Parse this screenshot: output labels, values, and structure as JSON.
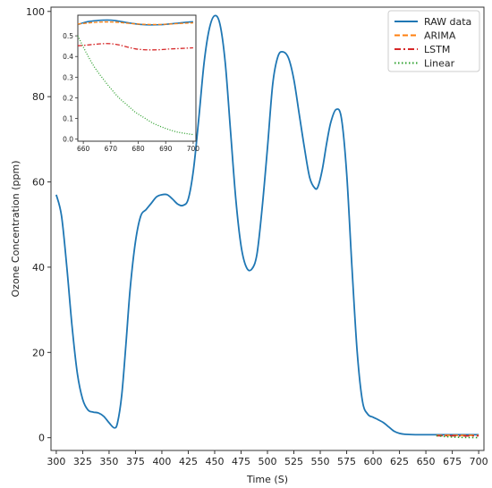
{
  "chart_data": [
    {
      "type": "line",
      "title": "",
      "xlabel": "Time (S)",
      "ylabel": "Ozone Concentration (ppm)",
      "xlim": [
        295,
        705
      ],
      "ylim": [
        -3,
        101
      ],
      "xticks": [
        300,
        325,
        350,
        375,
        400,
        425,
        450,
        475,
        500,
        525,
        550,
        575,
        600,
        625,
        650,
        675,
        700
      ],
      "yticks": [
        0,
        20,
        40,
        60,
        80,
        100
      ],
      "grid": false,
      "legend_position": "top-right",
      "series": [
        {
          "name": "RAW data",
          "color": "#1f77b4",
          "style": "solid",
          "x": [
            300,
            305,
            310,
            315,
            320,
            325,
            330,
            335,
            340,
            345,
            350,
            355,
            358,
            362,
            366,
            370,
            375,
            380,
            385,
            390,
            395,
            400,
            405,
            410,
            415,
            420,
            425,
            430,
            435,
            440,
            445,
            450,
            455,
            460,
            465,
            470,
            475,
            480,
            485,
            490,
            495,
            500,
            505,
            510,
            515,
            520,
            525,
            530,
            535,
            540,
            545,
            548,
            552,
            556,
            560,
            565,
            570,
            575,
            580,
            585,
            590,
            595,
            600,
            605,
            610,
            615,
            620,
            625,
            630,
            640,
            650,
            660,
            670,
            680,
            690,
            700
          ],
          "y": [
            57,
            52,
            40,
            26,
            15,
            9,
            6.5,
            6,
            5.8,
            5,
            3.5,
            2.3,
            3.5,
            10,
            22,
            35,
            46,
            52,
            53.5,
            55,
            56.5,
            57,
            57,
            56,
            54.8,
            54.5,
            56,
            63,
            75,
            88,
            96,
            99,
            97,
            88,
            72,
            56,
            45,
            40,
            39.5,
            43,
            54,
            68,
            83,
            89.5,
            90.5,
            89,
            84,
            76,
            68,
            61,
            58.5,
            59,
            63,
            69,
            74,
            77,
            75,
            62,
            40,
            20,
            8.5,
            5.5,
            4.8,
            4.2,
            3.5,
            2.5,
            1.5,
            1,
            0.8,
            0.7,
            0.7,
            0.7,
            0.7,
            0.7,
            0.7,
            0.7
          ]
        },
        {
          "name": "ARIMA",
          "color": "#ff7f0e",
          "style": "dashed",
          "x": [
            660,
            670,
            680,
            690,
            700
          ],
          "y": [
            0.55,
            0.57,
            0.55,
            0.55,
            0.56
          ]
        },
        {
          "name": "LSTM",
          "color": "#d62728",
          "style": "dashdot",
          "x": [
            660,
            670,
            680,
            690,
            700
          ],
          "y": [
            0.45,
            0.46,
            0.43,
            0.43,
            0.44
          ]
        },
        {
          "name": "Linear",
          "color": "#2ca02c",
          "style": "dotted",
          "x": [
            660,
            670,
            680,
            690,
            700
          ],
          "y": [
            0.46,
            0.23,
            0.1,
            0.04,
            0.02
          ]
        }
      ]
    },
    {
      "type": "line",
      "title": "",
      "xlabel": "",
      "ylabel": "",
      "xlim": [
        658,
        701
      ],
      "ylim": [
        -0.01,
        0.6
      ],
      "xticks": [
        660,
        670,
        680,
        690,
        700
      ],
      "ytick_labels": [
        "0.0",
        "0.1",
        "0.2",
        "0.3",
        "0.4",
        "0.5"
      ],
      "yticks": [
        0,
        0.1,
        0.2,
        0.3,
        0.4,
        0.5
      ],
      "grid": false,
      "series": [
        {
          "name": "RAW data",
          "color": "#1f77b4",
          "style": "solid",
          "x": [
            658,
            661,
            664,
            667,
            670,
            673,
            676,
            679,
            682,
            685,
            688,
            691,
            694,
            697,
            700
          ],
          "y": [
            0.555,
            0.567,
            0.573,
            0.576,
            0.576,
            0.571,
            0.564,
            0.558,
            0.554,
            0.553,
            0.554,
            0.557,
            0.561,
            0.565,
            0.568
          ]
        },
        {
          "name": "ARIMA",
          "color": "#ff7f0e",
          "style": "dashed",
          "x": [
            658,
            661,
            664,
            667,
            670,
            673,
            676,
            679,
            682,
            685,
            688,
            691,
            694,
            697,
            700
          ],
          "y": [
            0.557,
            0.561,
            0.565,
            0.567,
            0.567,
            0.565,
            0.561,
            0.558,
            0.556,
            0.555,
            0.555,
            0.557,
            0.559,
            0.561,
            0.563
          ]
        },
        {
          "name": "LSTM",
          "color": "#d62728",
          "style": "dashdot",
          "x": [
            658,
            661,
            664,
            667,
            670,
            673,
            676,
            679,
            682,
            685,
            688,
            691,
            694,
            697,
            700
          ],
          "y": [
            0.452,
            0.455,
            0.459,
            0.462,
            0.462,
            0.456,
            0.446,
            0.437,
            0.433,
            0.432,
            0.433,
            0.436,
            0.438,
            0.44,
            0.442
          ]
        },
        {
          "name": "Linear",
          "color": "#2ca02c",
          "style": "dotted",
          "x": [
            658,
            661,
            664,
            667,
            670,
            673,
            676,
            679,
            682,
            685,
            688,
            691,
            694,
            697,
            700
          ],
          "y": [
            0.5,
            0.42,
            0.35,
            0.295,
            0.245,
            0.2,
            0.165,
            0.13,
            0.105,
            0.08,
            0.062,
            0.047,
            0.035,
            0.028,
            0.022
          ]
        }
      ]
    }
  ]
}
